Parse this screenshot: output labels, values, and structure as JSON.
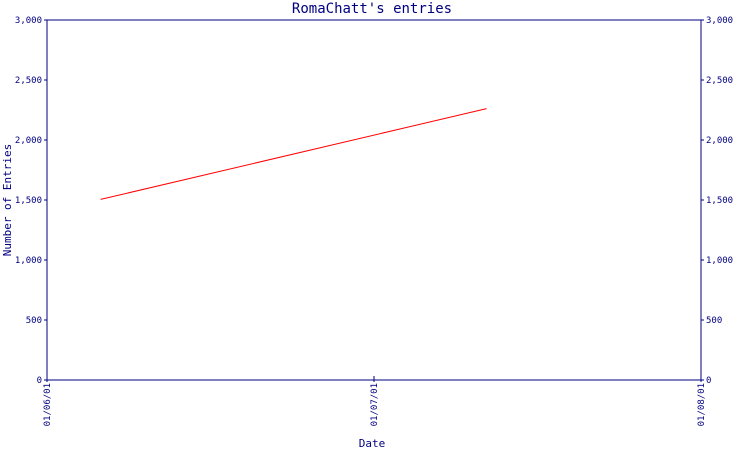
{
  "chart_data": {
    "type": "line",
    "title": "RomaChatt's entries",
    "xlabel": "Date",
    "ylabel": "Number of Entries",
    "x_ticks": [
      "01/06/01",
      "01/07/01",
      "01/08/01"
    ],
    "y_ticks": [
      "0",
      "500",
      "1,000",
      "1,500",
      "2,000",
      "2,500",
      "3,000"
    ],
    "ylim": [
      0,
      3000
    ],
    "xlim": [
      "2001-06-01",
      "2001-08-01"
    ],
    "series": [
      {
        "color": "#ff0000",
        "points": [
          {
            "x": "2001-06-06",
            "y": 1505
          },
          {
            "x": "2001-07-12",
            "y": 2262
          }
        ]
      }
    ],
    "axis_color": "#000080",
    "grid": false,
    "right_axis": true
  }
}
